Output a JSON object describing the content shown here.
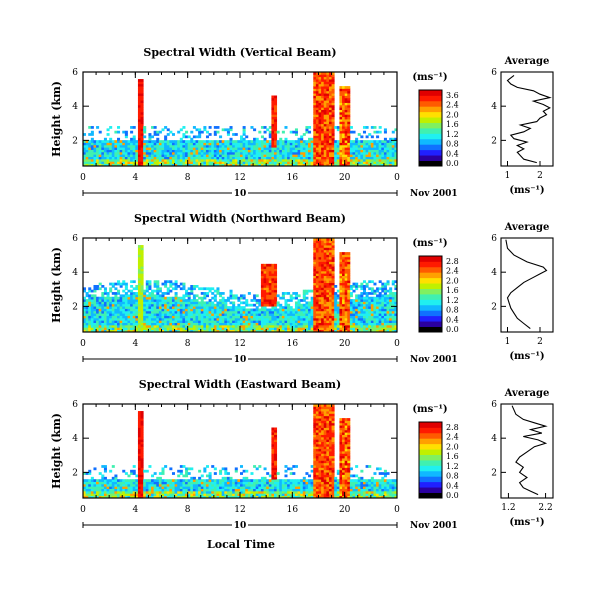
{
  "figure": {
    "xlabel": "Local Time",
    "date_label": "Nov 2001",
    "day_label": "10"
  },
  "colors": {
    "colormap": [
      "#000000",
      "#2b00a0",
      "#2020ff",
      "#1070ff",
      "#10b8ff",
      "#20f0f0",
      "#40f0b0",
      "#80f060",
      "#c0f000",
      "#ffe000",
      "#ffa000",
      "#ff5a00",
      "#ff1a00",
      "#e00000"
    ]
  },
  "chart_data": [
    {
      "type": "heatmap",
      "title": "Spectral Width (Vertical Beam)",
      "ylabel": "Height (km)",
      "xlabel": "",
      "x_ticks": [
        "0",
        "4",
        "8",
        "12",
        "16",
        "20",
        "0"
      ],
      "xlim": [
        0,
        24
      ],
      "ylim": [
        0.5,
        6
      ],
      "y_ticks": [
        "2",
        "4",
        "6"
      ],
      "colorbar": {
        "unit": "(ms⁻¹)",
        "ticks": [
          "3.6",
          "2.4",
          "2.0",
          "1.6",
          "1.2",
          "0.8",
          "0.4",
          "0.0"
        ],
        "range": [
          0,
          3.6
        ]
      },
      "average": {
        "title": "Average",
        "xlabel": "(ms⁻¹)",
        "x_ticks": [
          "1",
          "2"
        ],
        "xlim": [
          0.8,
          2.4
        ],
        "y_ticks": [
          "2",
          "4",
          "6"
        ],
        "x": [
          1.9,
          1.5,
          1.4,
          1.3,
          1.5,
          1.3,
          1.6,
          1.2,
          1.1,
          1.5,
          1.7,
          1.4,
          1.9,
          2.0,
          2.2,
          2.1,
          2.3,
          2.1,
          1.8,
          2.3,
          2.0,
          1.8,
          1.3,
          1.1,
          1.0,
          1.2
        ],
        "y": [
          0.7,
          0.9,
          1.1,
          1.3,
          1.5,
          1.7,
          1.9,
          2.1,
          2.3,
          2.5,
          2.7,
          2.9,
          3.1,
          3.3,
          3.5,
          3.7,
          3.9,
          4.1,
          4.3,
          4.5,
          4.7,
          4.9,
          5.1,
          5.3,
          5.5,
          5.8
        ]
      }
    },
    {
      "type": "heatmap",
      "title": "Spectral Width (Northward Beam)",
      "ylabel": "Height (km)",
      "xlabel": "",
      "x_ticks": [
        "0",
        "4",
        "8",
        "12",
        "16",
        "20",
        "0"
      ],
      "xlim": [
        0,
        24
      ],
      "ylim": [
        0.5,
        6
      ],
      "y_ticks": [
        "2",
        "4",
        "6"
      ],
      "colorbar": {
        "unit": "(ms⁻¹)",
        "ticks": [
          "2.8",
          "2.4",
          "2.0",
          "1.6",
          "1.2",
          "0.8",
          "0.4",
          "0.0"
        ],
        "range": [
          0,
          2.8
        ]
      },
      "average": {
        "title": "Average",
        "xlabel": "(ms⁻¹)",
        "x_ticks": [
          "1",
          "2"
        ],
        "xlim": [
          0.8,
          2.4
        ],
        "y_ticks": [
          "2",
          "4",
          "6"
        ],
        "x": [
          1.7,
          1.5,
          1.3,
          1.2,
          1.1,
          1.05,
          1.0,
          1.1,
          1.3,
          1.5,
          1.8,
          2.0,
          2.2,
          2.1,
          1.6,
          1.2,
          1.0,
          0.95
        ],
        "y": [
          0.7,
          1.0,
          1.3,
          1.6,
          1.9,
          2.2,
          2.5,
          2.8,
          3.1,
          3.4,
          3.7,
          3.9,
          4.1,
          4.3,
          4.6,
          5.0,
          5.4,
          5.9
        ]
      }
    },
    {
      "type": "heatmap",
      "title": "Spectral Width (Eastward Beam)",
      "ylabel": "Height (km)",
      "xlabel": "Local Time",
      "x_ticks": [
        "0",
        "4",
        "8",
        "12",
        "16",
        "20",
        "0"
      ],
      "xlim": [
        0,
        24
      ],
      "ylim": [
        0.5,
        6
      ],
      "y_ticks": [
        "2",
        "4",
        "6"
      ],
      "colorbar": {
        "unit": "(ms⁻¹)",
        "ticks": [
          "2.8",
          "2.4",
          "2.0",
          "1.6",
          "1.2",
          "0.8",
          "0.4",
          "0.0"
        ],
        "range": [
          0,
          2.8
        ]
      },
      "average": {
        "title": "Average",
        "xlabel": "(ms⁻¹)",
        "x_ticks": [
          "1.2",
          "2.2"
        ],
        "xlim": [
          1.0,
          2.4
        ],
        "y_ticks": [
          "2",
          "4",
          "6"
        ],
        "x": [
          2.0,
          1.8,
          1.6,
          1.5,
          1.7,
          1.5,
          1.6,
          1.4,
          1.5,
          1.7,
          1.9,
          2.2,
          2.0,
          1.6,
          2.1,
          1.8,
          2.2,
          1.9,
          1.6,
          1.4,
          1.3
        ],
        "y": [
          0.7,
          0.9,
          1.1,
          1.4,
          1.7,
          2.0,
          2.3,
          2.6,
          2.9,
          3.2,
          3.5,
          3.7,
          3.9,
          4.1,
          4.3,
          4.5,
          4.7,
          4.9,
          5.1,
          5.4,
          5.9
        ]
      }
    }
  ]
}
